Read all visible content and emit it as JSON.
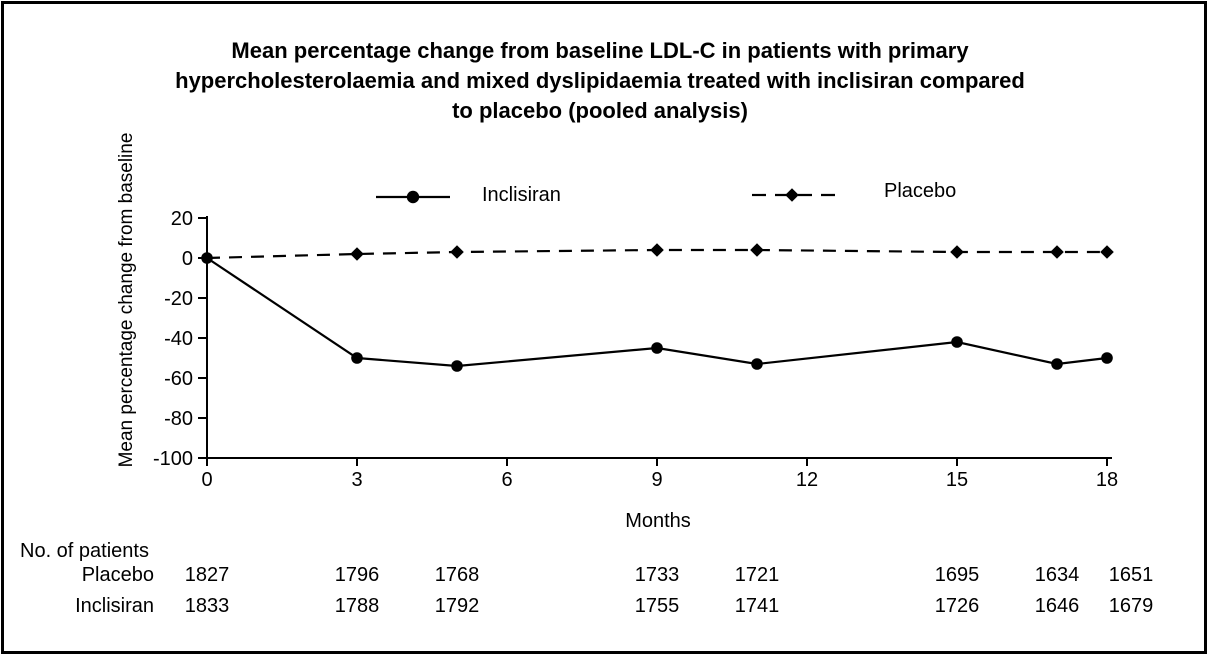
{
  "title": {
    "lines": [
      "Mean percentage change from baseline LDL-C in patients with primary",
      "hypercholesterolaemia and mixed dyslipidaemia treated with inclisiran compared",
      "to placebo (pooled analysis)"
    ]
  },
  "chart_data": {
    "type": "line",
    "xlabel": "Months",
    "ylabel": "Mean percentage change from baseline",
    "x": [
      0,
      3,
      5,
      9,
      11,
      15,
      17,
      18
    ],
    "x_ticks": [
      0,
      3,
      6,
      9,
      12,
      15,
      18
    ],
    "y_ticks": [
      20,
      0,
      -20,
      -40,
      -60,
      -80,
      -100
    ],
    "xlim": [
      0,
      18
    ],
    "ylim": [
      -100,
      20
    ],
    "grid": false,
    "legend_position": "top-center",
    "color": "#000000",
    "series": [
      {
        "name": "Inclisiran",
        "marker": "circle",
        "line": "solid",
        "color": "#000000",
        "values": [
          0,
          -50,
          -54,
          -45,
          -53,
          -42,
          -53,
          -50
        ]
      },
      {
        "name": "Placebo",
        "marker": "diamond",
        "line": "dashed",
        "color": "#000000",
        "values": [
          0,
          2,
          3,
          4,
          4,
          3,
          3,
          3
        ]
      }
    ]
  },
  "patients_table": {
    "header": "No. of patients",
    "rows": [
      {
        "label": "Placebo",
        "values": [
          "1827",
          "1796",
          "1768",
          "1733",
          "1721",
          "1695",
          "1634",
          "1651"
        ]
      },
      {
        "label": "Inclisiran",
        "values": [
          "1833",
          "1788",
          "1792",
          "1755",
          "1741",
          "1726",
          "1646",
          "1679"
        ]
      }
    ]
  }
}
